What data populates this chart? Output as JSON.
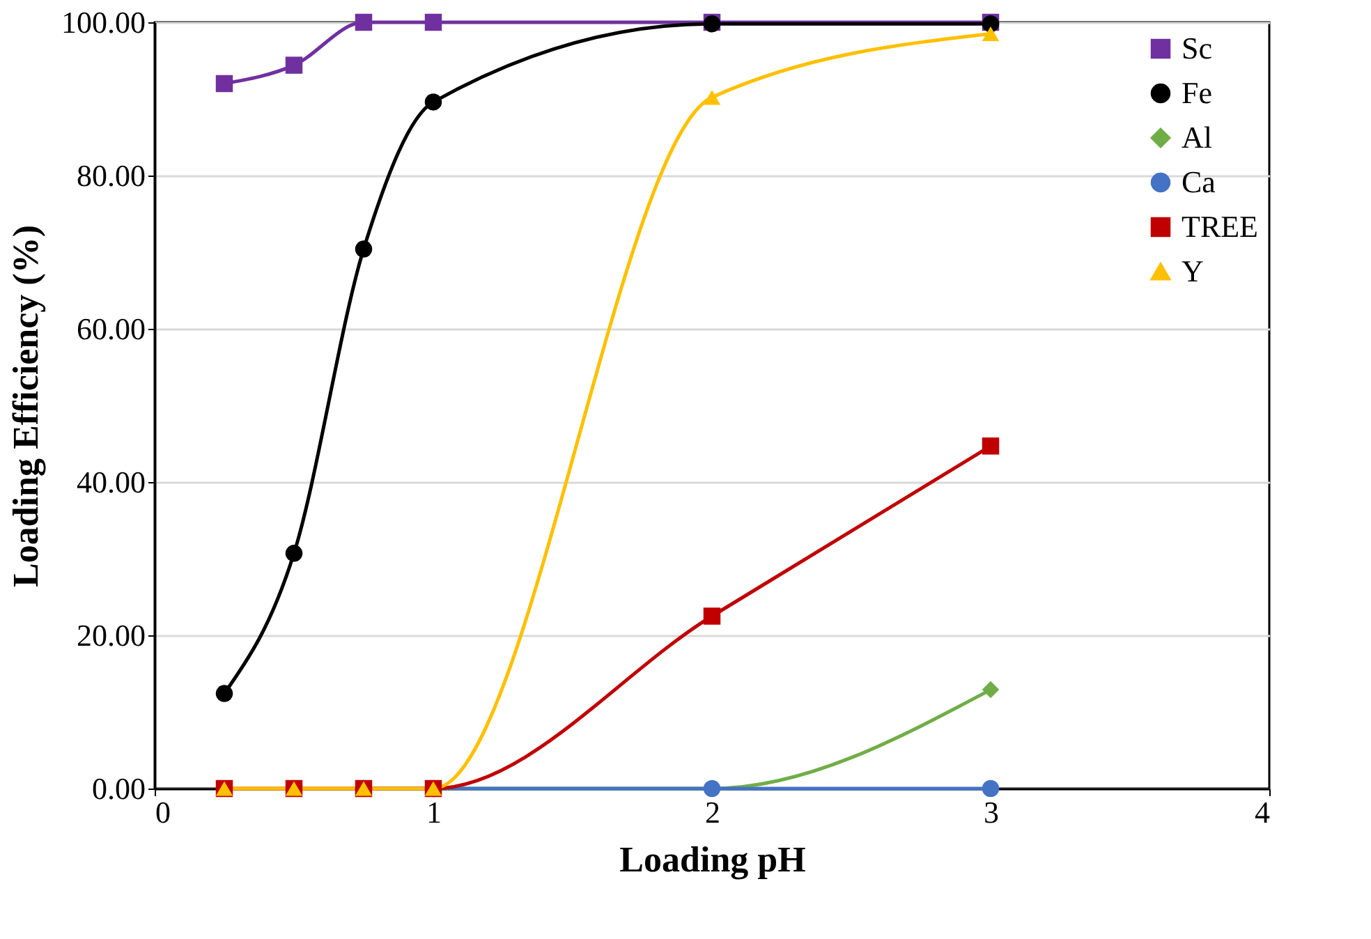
{
  "chart_data": {
    "type": "line",
    "xlabel": "Loading pH",
    "ylabel": "Loading Efficiency (%)",
    "xlim": [
      0,
      4
    ],
    "xticks": [
      0,
      1,
      2,
      3,
      4
    ],
    "ylim": [
      0,
      100
    ],
    "yticks": [
      {
        "value": 0,
        "label": "0.00"
      },
      {
        "value": 20,
        "label": "20.00"
      },
      {
        "value": 40,
        "label": "40.00"
      },
      {
        "value": 60,
        "label": "60.00"
      },
      {
        "value": 80,
        "label": "80.00"
      },
      {
        "value": 100,
        "label": "100.00"
      }
    ],
    "x": [
      0.25,
      0.5,
      0.75,
      1,
      2,
      3
    ],
    "grid": "y",
    "legend": "top right",
    "series": [
      {
        "name": "Sc",
        "color": "#7030a0",
        "marker": "square",
        "values": [
          92.0,
          94.4,
          100,
          100,
          100,
          100
        ]
      },
      {
        "name": "Fe",
        "color": "#000000",
        "marker": "circle",
        "values": [
          12.4,
          30.7,
          70.4,
          89.6,
          99.8,
          99.8
        ]
      },
      {
        "name": "Al",
        "color": "#70ad47",
        "marker": "diamond",
        "values": [
          null,
          null,
          0,
          0,
          0,
          12.9
        ]
      },
      {
        "name": "Ca",
        "color": "#4472c4",
        "marker": "circle",
        "values": [
          null,
          null,
          0,
          0,
          0,
          0
        ]
      },
      {
        "name": "TREE",
        "color": "#c00000",
        "marker": "square",
        "values": [
          0,
          0,
          0,
          0,
          22.5,
          44.7
        ]
      },
      {
        "name": "Y",
        "color": "#ffc000",
        "marker": "triangle",
        "values": [
          0,
          0,
          0,
          0,
          90.2,
          98.5
        ]
      }
    ]
  }
}
